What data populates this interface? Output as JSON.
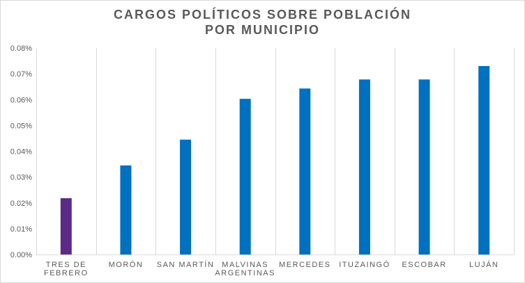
{
  "chart_data": {
    "type": "bar",
    "title_lines": [
      "CARGOS POLÍTICOS SOBRE POBLACIÓN",
      "POR MUNICIPIO"
    ],
    "categories": [
      [
        "TRES DE",
        "FEBRERO"
      ],
      [
        "MORÓN"
      ],
      [
        "SAN MARTÍN"
      ],
      [
        "MALVINAS",
        "ARGENTINAS"
      ],
      [
        "MERCEDES"
      ],
      [
        "ITUZAINGÓ"
      ],
      [
        "ESCOBAR"
      ],
      [
        "LUJÁN"
      ]
    ],
    "values": [
      0.0218,
      0.0345,
      0.0445,
      0.0603,
      0.0643,
      0.0678,
      0.0678,
      0.073
    ],
    "unit": "%",
    "ylim": [
      0,
      0.08
    ],
    "yticks": [
      "0.00%",
      "0.01%",
      "0.02%",
      "0.03%",
      "0.04%",
      "0.05%",
      "0.06%",
      "0.07%",
      "0.08%"
    ],
    "grid": "vertical-category-separators",
    "legend": "none",
    "colors": {
      "highlight": "#5b2a86",
      "default": "#0070c0",
      "grid": "#d9d9d9",
      "text": "#595959"
    },
    "highlight_index": 0
  }
}
